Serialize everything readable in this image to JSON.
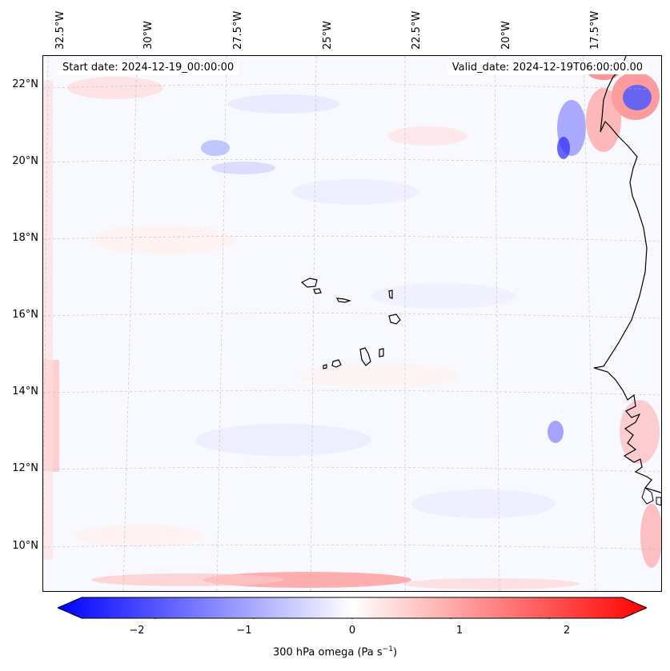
{
  "header": {
    "start_date": "Start date: 2024-12-19_00:00:00",
    "valid_date": "Valid_date: 2024-12-19T06:00:00.00"
  },
  "axes": {
    "lon_labels": [
      "32.5°W",
      "30°W",
      "27.5°W",
      "25°W",
      "22.5°W",
      "20°W",
      "17.5°W"
    ],
    "lat_labels": [
      "22°N",
      "20°N",
      "18°N",
      "16°N",
      "14°N",
      "12°N",
      "10°N"
    ]
  },
  "colorbar": {
    "ticks": [
      "−2",
      "−1",
      "0",
      "1",
      "2"
    ],
    "label_prefix": "300 hPa omega (Pa s",
    "label_sup": "−1",
    "label_suffix": ")",
    "min": -2.75,
    "max": 2.75,
    "colors": {
      "negative": "#0000ff",
      "zero": "#ffffff",
      "positive": "#ff0000"
    }
  },
  "chart_data": {
    "type": "heatmap",
    "title": "",
    "xlabel": "",
    "ylabel": "",
    "variable": "300 hPa omega (Pa s−1)",
    "colormap": "bwr",
    "vmin": -2.75,
    "vmax": 2.75,
    "colorbar_ticks": [
      -2,
      -1,
      0,
      1,
      2
    ],
    "lon_ticks_deg": [
      -32.5,
      -30,
      -27.5,
      -25,
      -22.5,
      -20,
      -17.5
    ],
    "lat_ticks_deg": [
      22,
      20,
      18,
      16,
      14,
      12,
      10
    ],
    "lon_range": [
      -33.0,
      -16.0
    ],
    "lat_range": [
      8.9,
      22.8
    ],
    "features": "near-zero omega over most of domain; strong positive/negative couplet near 17°W 22°N; positive band along southern boundary near 9°N"
  }
}
